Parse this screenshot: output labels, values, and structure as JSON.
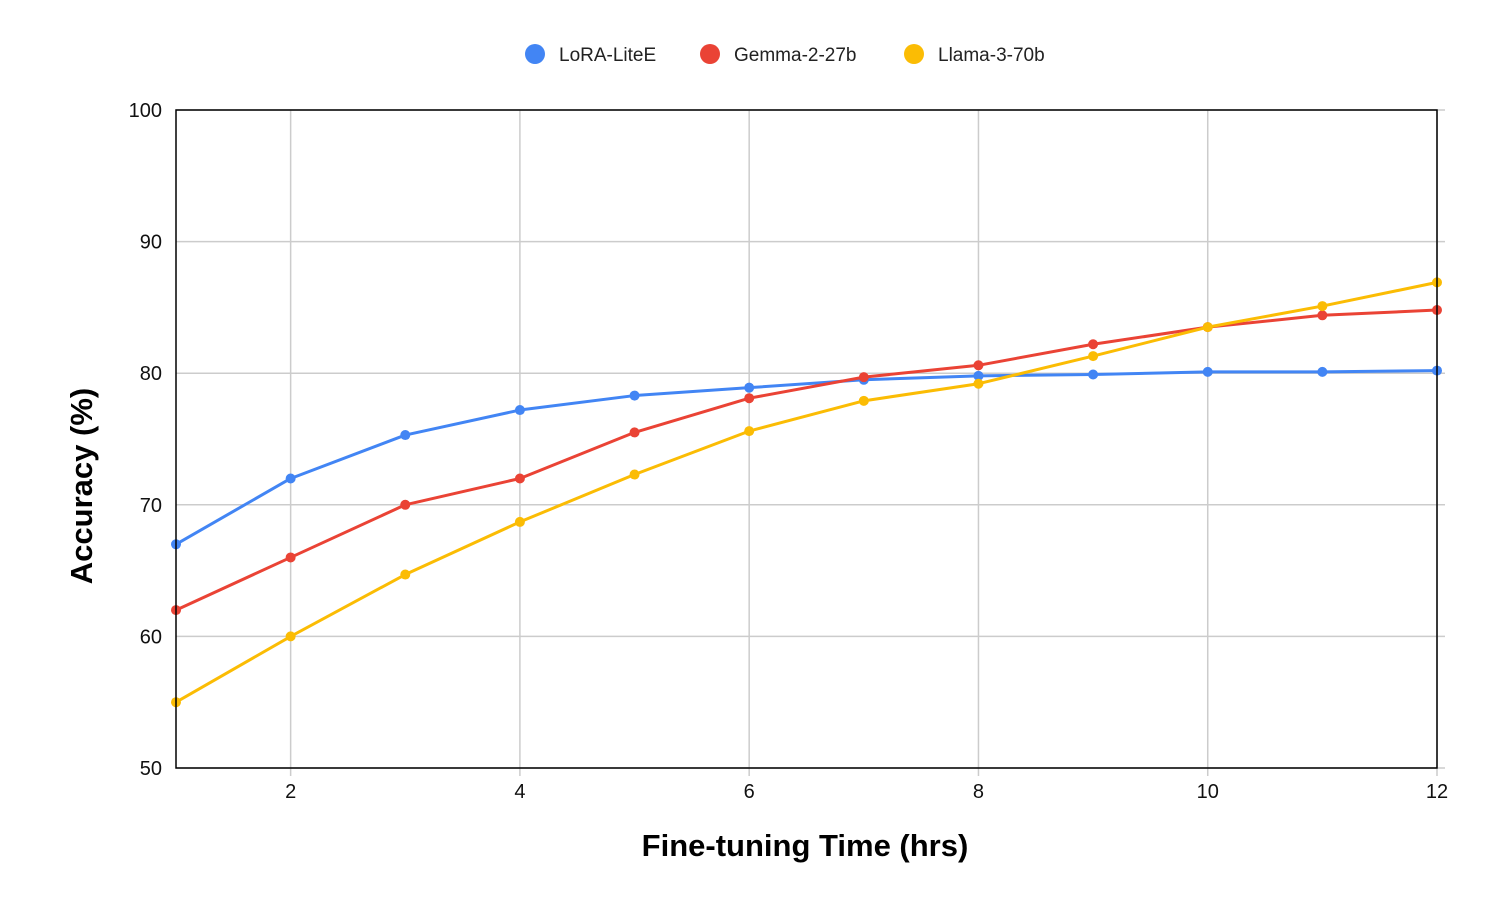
{
  "chart_data": {
    "type": "line",
    "title": "",
    "xlabel": "Fine-tuning Time (hrs)",
    "ylabel": "Accuracy (%)",
    "xlim": [
      1,
      12
    ],
    "ylim": [
      50,
      100
    ],
    "x_ticks": [
      2,
      4,
      6,
      8,
      10,
      12
    ],
    "y_ticks": [
      50,
      60,
      70,
      80,
      90,
      100
    ],
    "grid": true,
    "legend_position": "top-center",
    "x": [
      1,
      2,
      3,
      4,
      5,
      6,
      7,
      8,
      9,
      10,
      11,
      12
    ],
    "series": [
      {
        "name": "LoRA-LiteE",
        "color": "#4285F4",
        "values": [
          67,
          72,
          75.3,
          77.2,
          78.3,
          78.9,
          79.5,
          79.8,
          79.9,
          80.1,
          80.1,
          80.2
        ]
      },
      {
        "name": "Gemma-2-27b",
        "color": "#EA4335",
        "values": [
          62,
          66,
          70,
          72,
          75.5,
          78.1,
          79.7,
          80.6,
          82.2,
          83.5,
          84.4,
          84.8
        ]
      },
      {
        "name": "Llama-3-70b",
        "color": "#FBBC04",
        "values": [
          55,
          60,
          64.7,
          68.7,
          72.3,
          75.6,
          77.9,
          79.2,
          81.3,
          83.5,
          85.1,
          86.9
        ]
      }
    ]
  }
}
